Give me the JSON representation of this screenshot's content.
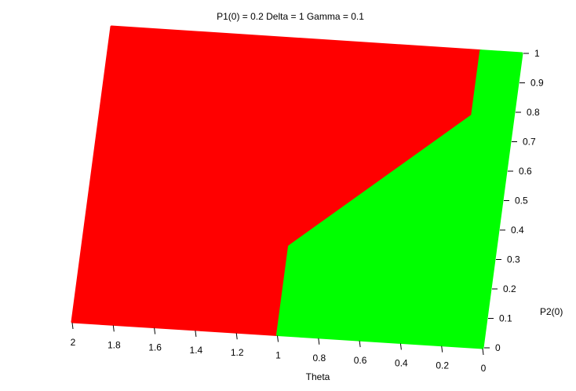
{
  "chart_data": {
    "type": "heatmap",
    "title": "P1(0) = 0.2 Delta = 1 Gamma = 0.1",
    "xlabel": "Theta",
    "ylabel": "P2(0)",
    "xlim": [
      2,
      0
    ],
    "ylim": [
      0,
      1
    ],
    "x_ticks": [
      "2",
      "1.8",
      "1.6",
      "1.4",
      "1.2",
      "1",
      "0.8",
      "0.6",
      "0.4",
      "0.2",
      "0"
    ],
    "y_ticks": [
      "0",
      "0.1",
      "0.2",
      "0.3",
      "0.4",
      "0.5",
      "0.6",
      "0.7",
      "0.8",
      "0.9",
      "1"
    ],
    "regions": [
      {
        "color": "#ff0000",
        "boundary": [
          [
            2,
            0
          ],
          [
            1,
            0
          ],
          [
            1,
            0.3
          ],
          [
            0.2,
            0.78
          ],
          [
            0.2,
            1
          ],
          [
            2,
            1
          ]
        ]
      },
      {
        "color": "#00ff00",
        "boundary": [
          [
            1,
            0
          ],
          [
            0,
            0
          ],
          [
            0,
            1
          ],
          [
            0.2,
            1
          ],
          [
            0.2,
            0.78
          ],
          [
            1,
            0.3
          ]
        ]
      }
    ]
  }
}
